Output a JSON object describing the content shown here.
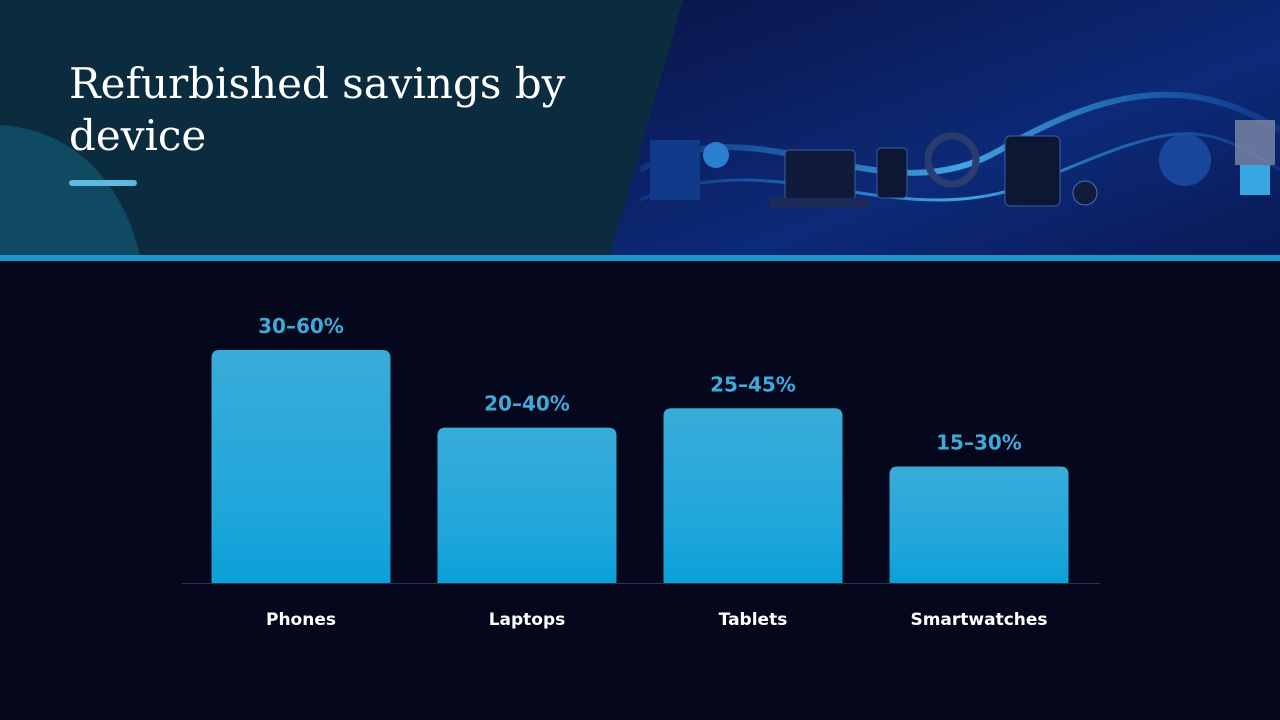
{
  "chart_data": {
    "type": "bar",
    "title": "Refurbished savings by device",
    "categories": [
      "Phones",
      "Laptops",
      "Tablets",
      "Smartwatches"
    ],
    "values": [
      60,
      40,
      45,
      30
    ],
    "value_labels": [
      "30–60%",
      "20–40%",
      "25–45%",
      "15–30%"
    ],
    "color": "#1ea6da",
    "ylim": [
      0,
      60
    ]
  }
}
